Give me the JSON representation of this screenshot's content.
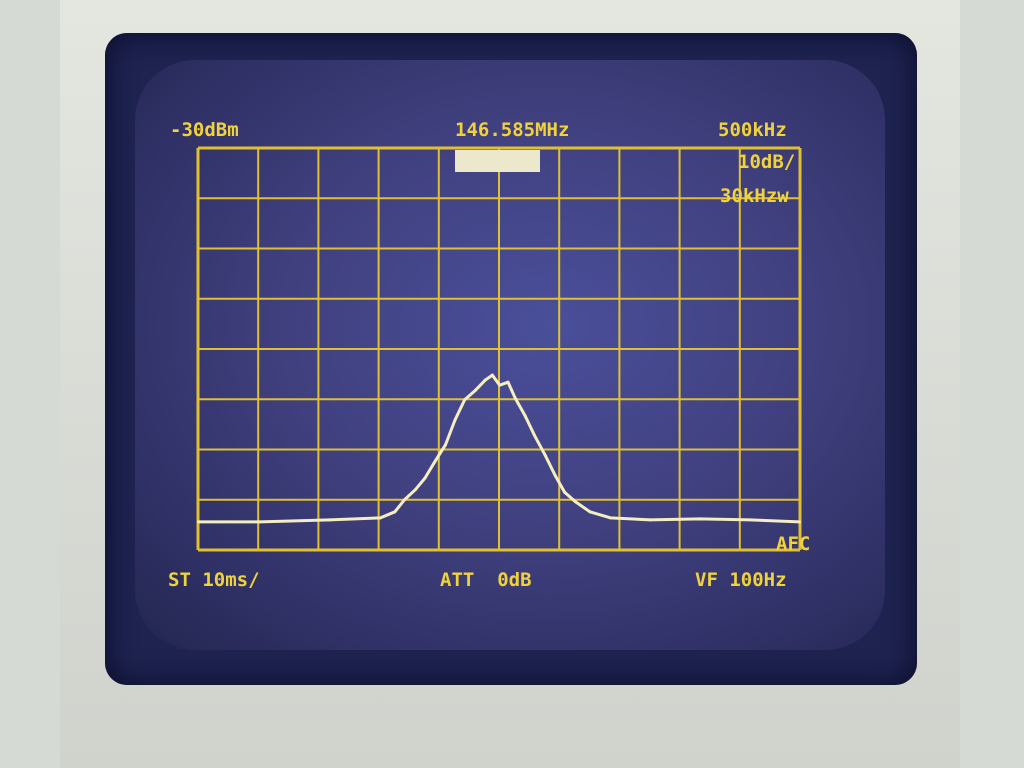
{
  "readouts": {
    "reference_level": "-30dBm",
    "center_frequency": "146.585MHz",
    "span_per_div": "500kHz",
    "vertical_scale": "10dB/",
    "resolution_bandwidth": "30kHzw",
    "sweep_time": "ST 10ms/",
    "attenuation": "ATT  0dB",
    "video_filter": "VF 100Hz",
    "afc": "AFC"
  },
  "colors": {
    "trace": "#f4eec0",
    "grid": "#e0c030",
    "text": "#f0d23a",
    "screen": "#40407f"
  },
  "chart_data": {
    "type": "line",
    "title": "",
    "xlabel": "",
    "ylabel": "",
    "x_unit": "MHz",
    "y_unit": "dBm",
    "xlim": [
      144.085,
      149.085
    ],
    "ylim": [
      -110,
      -30
    ],
    "grid": true,
    "grid_divisions": {
      "x": 10,
      "y": 8
    },
    "series": [
      {
        "x": [
          144.09,
          144.6,
          145.18,
          145.6,
          145.72,
          145.8,
          145.89,
          145.97,
          146.05,
          146.14,
          146.22,
          146.3,
          146.39,
          146.47,
          146.53,
          146.59,
          146.66,
          146.72,
          146.8,
          146.88,
          146.97,
          147.05,
          147.13,
          147.22,
          147.34,
          147.51,
          147.84,
          148.25,
          148.67,
          149.08
        ],
        "y": [
          -104.4,
          -104.4,
          -104.0,
          -103.6,
          -102.4,
          -100.0,
          -98.0,
          -95.7,
          -92.5,
          -89.1,
          -84.1,
          -80.1,
          -78.2,
          -76.2,
          -75.2,
          -77.2,
          -76.6,
          -79.8,
          -83.2,
          -87.2,
          -91.2,
          -95.1,
          -98.5,
          -100.4,
          -102.4,
          -103.6,
          -104.0,
          -103.8,
          -104.0,
          -104.4
        ]
      }
    ]
  }
}
